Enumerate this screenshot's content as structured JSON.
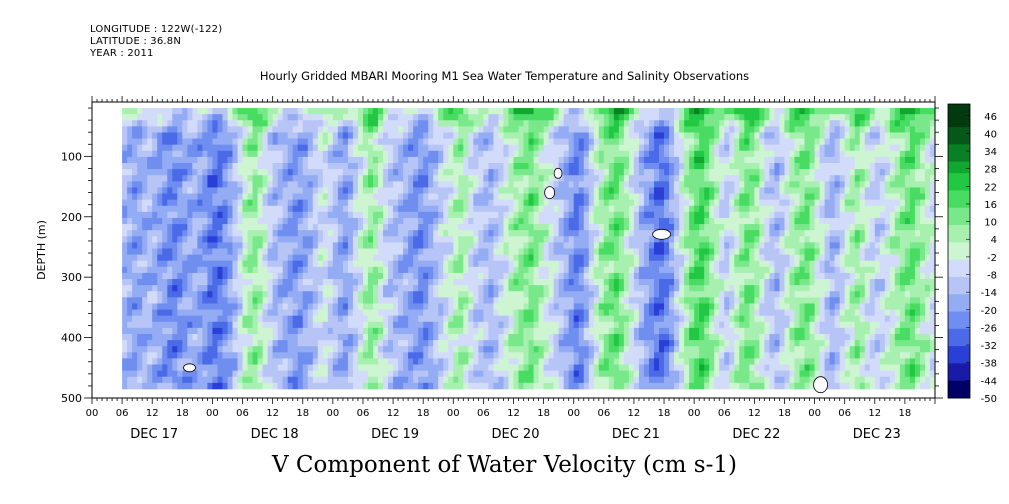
{
  "header": {
    "longitude": "LONGITUDE : 122W(-122)",
    "latitude": "LATITUDE : 36.8N",
    "year": "YEAR : 2011"
  },
  "title": "Hourly Gridded MBARI Mooring M1 Sea Water Temperature and Salinity Observations",
  "variable_title": "V Component of Water Velocity (cm s-1)",
  "colors": {
    "negative_scale": [
      "#000066",
      "#1a1aa8",
      "#2a3fd6",
      "#4a6ae8",
      "#6f8ef0",
      "#94acf3",
      "#b6c4f6",
      "#d2dbf9"
    ],
    "positive_scale": [
      "#cef5d2",
      "#a8f0b0",
      "#78e88a",
      "#48dd62",
      "#22c844",
      "#11a832",
      "#0a8024",
      "#05581a",
      "#023a10"
    ]
  },
  "chart_data": {
    "type": "heatmap",
    "title": "Hourly Gridded MBARI Mooring M1 Sea Water Temperature and Salinity Observations",
    "variable": "V Component of Water Velocity (cm s-1)",
    "xlabel": "",
    "ylabel": "DEPTH (m)",
    "x_day_labels": [
      "DEC 17",
      "DEC 18",
      "DEC 19",
      "DEC 20",
      "DEC 21",
      "DEC 22",
      "DEC 23"
    ],
    "x_hour_labels": [
      "00",
      "06",
      "12",
      "18"
    ],
    "x_range_days": [
      0,
      7
    ],
    "data_start_day": 0.25,
    "yticks": [
      100,
      200,
      300,
      400,
      500
    ],
    "ylim": [
      500,
      10
    ],
    "data_depth_range": [
      20,
      485
    ],
    "colorbar_labels": [
      46,
      40,
      34,
      28,
      22,
      16,
      10,
      4,
      -2,
      -8,
      -14,
      -20,
      -26,
      -32,
      -38,
      -44,
      -50
    ],
    "colorbar_range": [
      -50,
      50
    ],
    "columns_per_day": 24,
    "v_mean_by_column": [
      -14,
      -16,
      -18,
      -17,
      -15,
      -14,
      -16,
      -18,
      -20,
      -22,
      -23,
      -21,
      -19,
      -17,
      -16,
      -18,
      -20,
      -24,
      -26,
      -25,
      -22,
      -18,
      -12,
      -6,
      2,
      6,
      8,
      4,
      -2,
      -8,
      -12,
      -14,
      -16,
      -18,
      -20,
      -19,
      -17,
      -14,
      -10,
      -6,
      -4,
      -8,
      -12,
      -16,
      -18,
      -14,
      -8,
      -2,
      4,
      8,
      6,
      0,
      -6,
      -10,
      -12,
      -14,
      -16,
      -18,
      -20,
      -22,
      -20,
      -16,
      -12,
      -8,
      -4,
      0,
      4,
      6,
      2,
      -4,
      -8,
      -10,
      -12,
      -14,
      -10,
      -6,
      -2,
      2,
      6,
      8,
      10,
      12,
      8,
      4,
      0,
      -4,
      -8,
      -12,
      -16,
      -20,
      -24,
      -22,
      -16,
      -8,
      0,
      6,
      10,
      12,
      14,
      10,
      4,
      -2,
      -8,
      -14,
      -18,
      -22,
      -26,
      -28,
      -24,
      -18,
      -10,
      -2,
      6,
      12,
      16,
      18,
      14,
      8,
      2,
      -4,
      -8,
      -4,
      2,
      8,
      12,
      10,
      6,
      0,
      -6,
      -10,
      -12,
      -8,
      -2,
      4,
      8,
      10,
      12,
      8,
      2,
      -4,
      -10,
      -14,
      -12,
      -6,
      0,
      4,
      8,
      4,
      -2,
      -6,
      -8,
      -6,
      -2,
      2,
      6,
      10,
      12,
      14,
      10,
      6,
      2,
      -2,
      -4,
      -2,
      2,
      6,
      10,
      12
    ]
  }
}
